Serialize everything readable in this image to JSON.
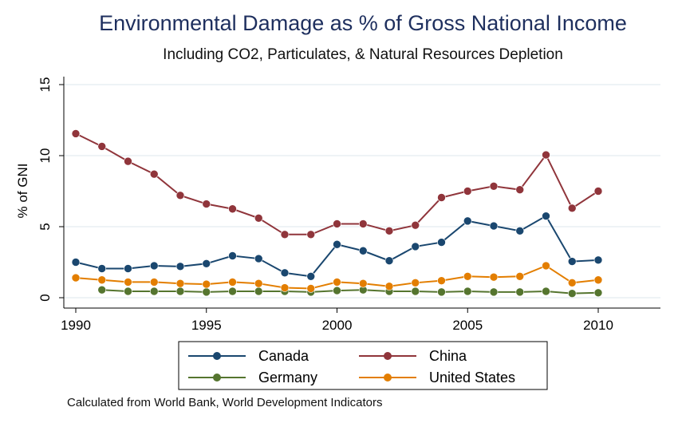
{
  "chart_data": {
    "type": "line",
    "title": "Environmental Damage as % of Gross National Income",
    "subtitle": "Including CO2, Particulates, & Natural Resources Depletion",
    "xlabel": "",
    "ylabel": "% of GNI",
    "xlim": [
      1990,
      2012
    ],
    "ylim": [
      0,
      15
    ],
    "xticks": [
      1990,
      1995,
      2000,
      2005,
      2010
    ],
    "yticks": [
      0,
      5,
      10,
      15
    ],
    "grid": true,
    "legend_position": "bottom",
    "x": [
      1990,
      1991,
      1992,
      1993,
      1994,
      1995,
      1996,
      1997,
      1998,
      1999,
      2000,
      2001,
      2002,
      2003,
      2004,
      2005,
      2006,
      2007,
      2008,
      2009,
      2010
    ],
    "series": [
      {
        "name": "Canada",
        "color": "#1a476f",
        "values": [
          2.5,
          2.05,
          2.05,
          2.25,
          2.2,
          2.4,
          2.95,
          2.75,
          1.75,
          1.5,
          3.75,
          3.3,
          2.6,
          3.6,
          3.9,
          5.4,
          5.05,
          4.7,
          5.75,
          2.55,
          2.65
        ]
      },
      {
        "name": "China",
        "color": "#90353b",
        "values": [
          11.55,
          10.65,
          9.6,
          8.7,
          7.2,
          6.6,
          6.25,
          5.6,
          4.45,
          4.45,
          5.2,
          5.2,
          4.7,
          5.1,
          7.05,
          7.5,
          7.85,
          7.6,
          10.05,
          6.3,
          7.5
        ]
      },
      {
        "name": "Germany",
        "color": "#55752f",
        "values": [
          null,
          0.55,
          0.45,
          0.45,
          0.45,
          0.4,
          0.45,
          0.45,
          0.45,
          0.4,
          0.5,
          0.55,
          0.45,
          0.45,
          0.4,
          0.45,
          0.4,
          0.4,
          0.45,
          0.3,
          0.35
        ]
      },
      {
        "name": "United States",
        "color": "#e37e00",
        "values": [
          1.4,
          1.25,
          1.1,
          1.1,
          1.0,
          0.95,
          1.1,
          1.0,
          0.7,
          0.65,
          1.1,
          1.0,
          0.8,
          1.05,
          1.2,
          1.5,
          1.45,
          1.5,
          2.25,
          1.05,
          1.25
        ]
      }
    ]
  },
  "caption": "Calculated from World Bank, World Development Indicators",
  "colors": {
    "title": "#1e2f5e",
    "grid": "#dce7ee",
    "axis": "#000000"
  }
}
